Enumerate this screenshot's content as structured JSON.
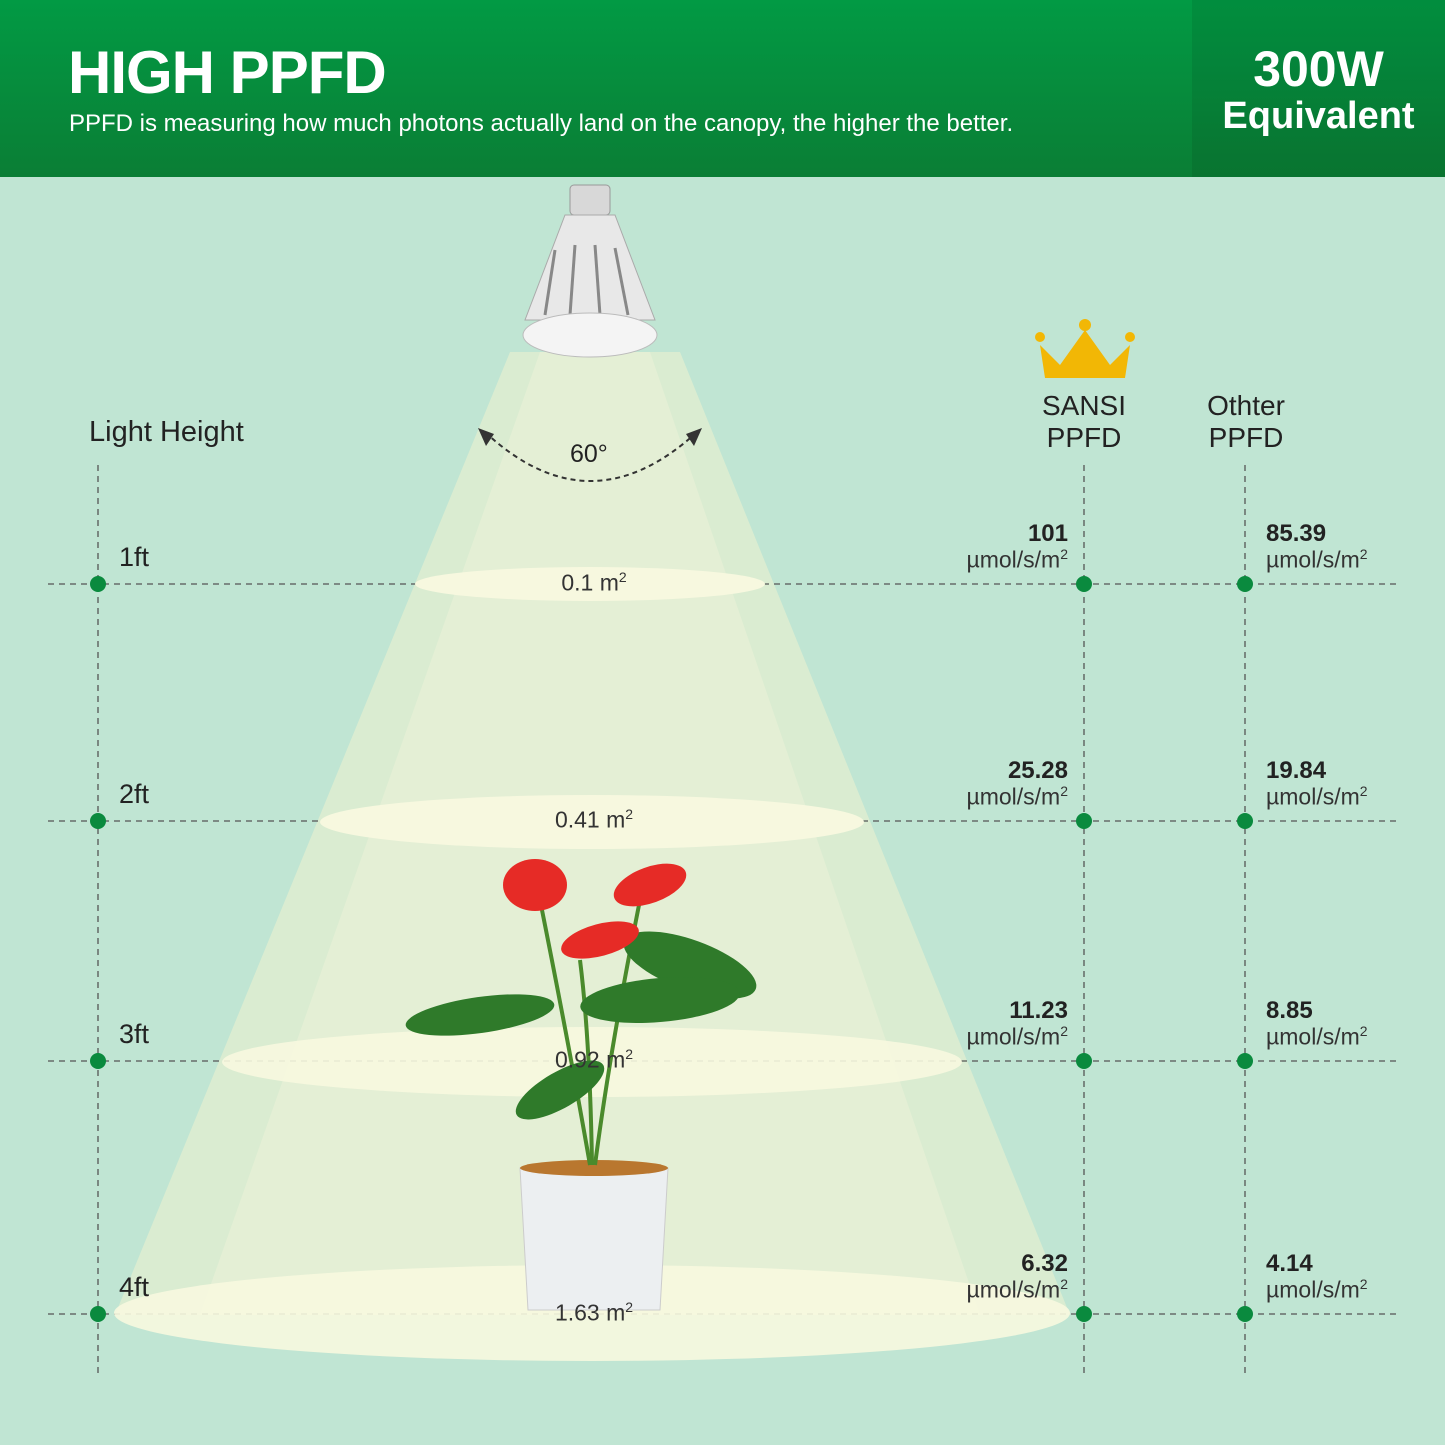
{
  "header": {
    "title": "HIGH PPFD",
    "subtitle": "PPFD is measuring how much photons actually land on the canopy, the higher the better.",
    "badge_line1": "300W",
    "badge_line2": "Equivalent"
  },
  "axis_label": "Light Height",
  "beam_angle": "60°",
  "columns": {
    "sansi": "SANSI PPFD",
    "other": "Othter PPFD"
  },
  "unit": "µmol/s/m",
  "unit_sup": "2",
  "rows": [
    {
      "height": "1ft",
      "area": "0.1 m",
      "sansi": "101",
      "other": "85.39"
    },
    {
      "height": "2ft",
      "area": "0.41 m",
      "sansi": "25.28",
      "other": "19.84"
    },
    {
      "height": "3ft",
      "area": "0.92 m",
      "sansi": "11.23",
      "other": "8.85"
    },
    {
      "height": "4ft",
      "area": "1.63 m",
      "sansi": "6.32",
      "other": "4.14"
    }
  ],
  "colors": {
    "header_green": "#029a44",
    "background": "#c0e5d3",
    "dot_green": "#0a8a3e",
    "beam": "#f4f6d8",
    "crown": "#f2b705"
  }
}
